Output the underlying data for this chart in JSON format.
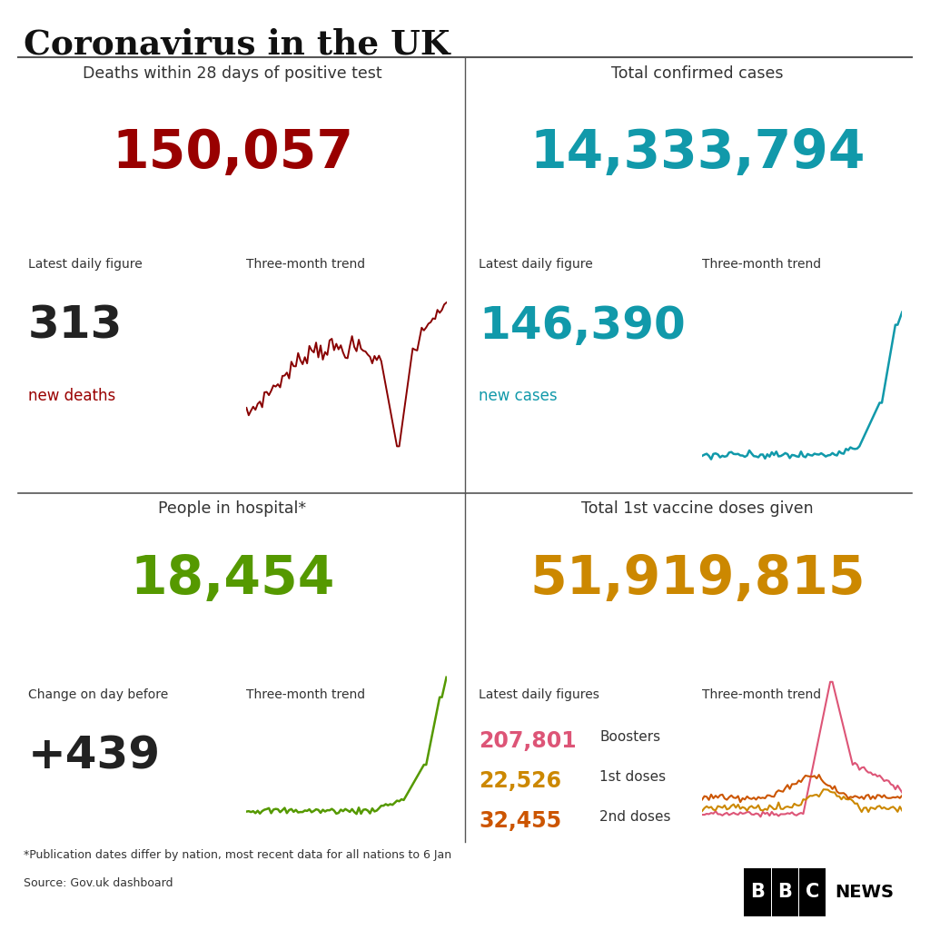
{
  "title": "Coronavirus in the UK",
  "bg_color": "#ffffff",
  "title_color": "#111111",
  "separator_color": "#555555",
  "top_left": {
    "label": "Deaths within 28 days of positive test",
    "big_number": "150,057",
    "big_color": "#990000",
    "daily_label": "Latest daily figure",
    "daily_number": "313",
    "daily_number_color": "#222222",
    "daily_sublabel": "new deaths",
    "daily_sublabel_color": "#990000",
    "trend_label": "Three-month trend",
    "trend_color": "#880000"
  },
  "top_right": {
    "label": "Total confirmed cases",
    "big_number": "14,333,794",
    "big_color": "#1199aa",
    "daily_label": "Latest daily figure",
    "daily_number": "146,390",
    "daily_number_color": "#1199aa",
    "daily_sublabel": "new cases",
    "daily_sublabel_color": "#1199aa",
    "trend_label": "Three-month trend",
    "trend_color": "#1199aa"
  },
  "bottom_left": {
    "label": "People in hospital*",
    "big_number": "18,454",
    "big_color": "#559900",
    "daily_label": "Change on day before",
    "daily_number": "+439",
    "daily_number_color": "#222222",
    "trend_label": "Three-month trend",
    "trend_color": "#559900"
  },
  "bottom_right": {
    "label": "Total 1st vaccine doses given",
    "big_number": "51,919,815",
    "big_color": "#cc8800",
    "daily_label": "Latest daily figures",
    "boosters_number": "207,801",
    "boosters_label": "Boosters",
    "boosters_color": "#dd5577",
    "doses1_number": "22,526",
    "doses1_label": "1st doses",
    "doses1_color": "#cc8800",
    "doses2_number": "32,455",
    "doses2_label": "2nd doses",
    "doses2_color": "#cc5500",
    "trend_label": "Three-month trend"
  },
  "footnote": "*Publication dates differ by nation, most recent data for all nations to 6 Jan",
  "source": "Source: Gov.uk dashboard"
}
